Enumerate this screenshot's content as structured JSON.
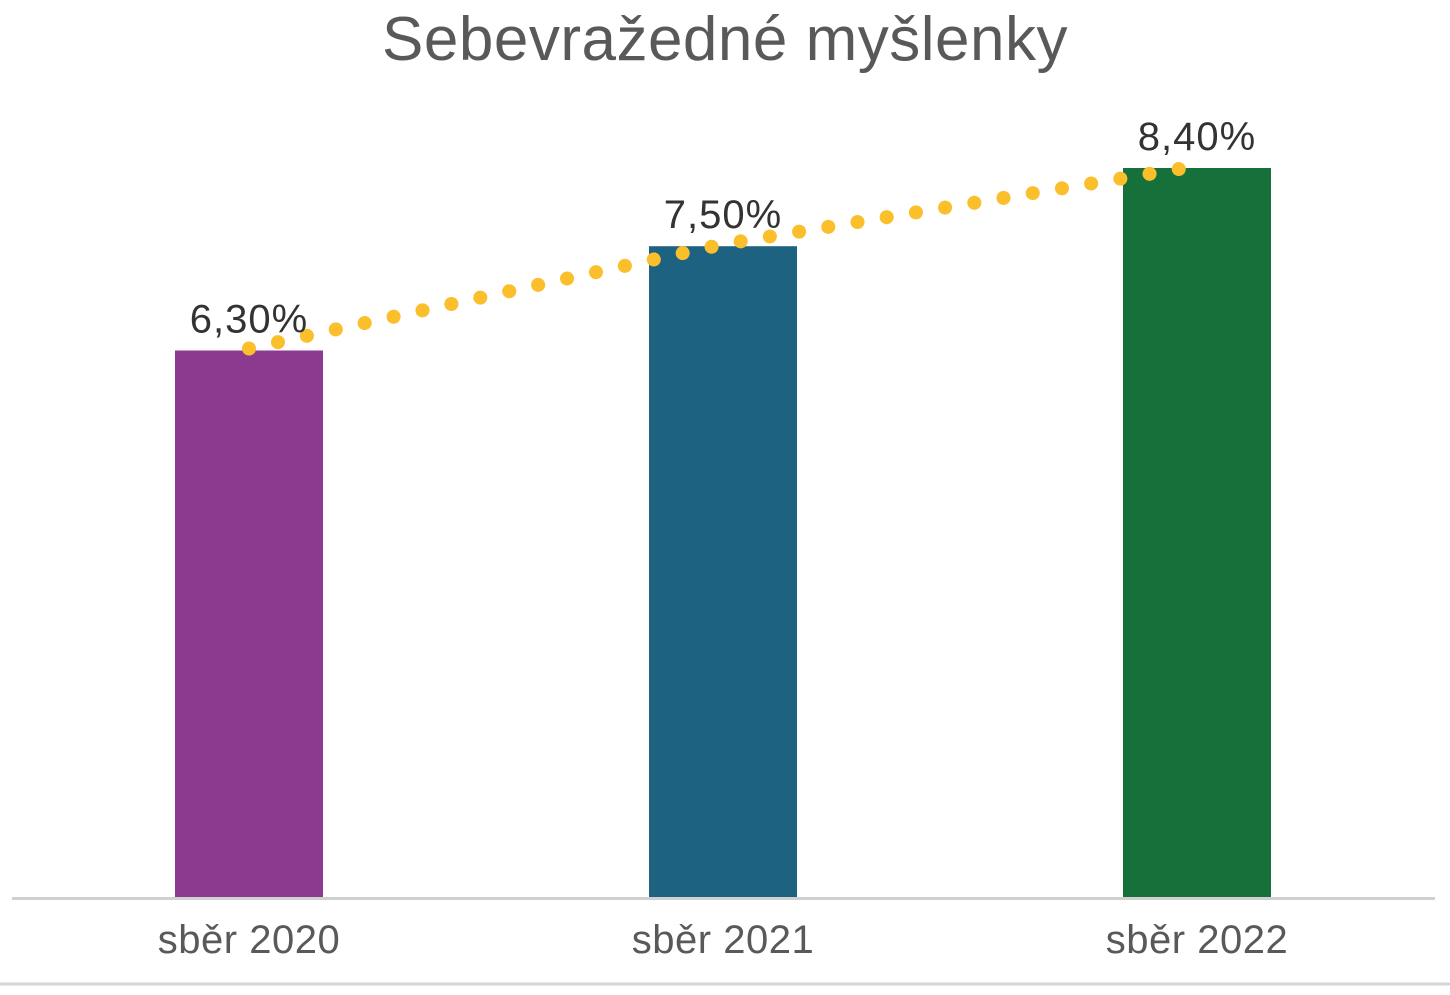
{
  "chart_data": {
    "type": "bar",
    "title": "Sebevražedné myšlenky",
    "categories": [
      "sběr 2020",
      "sběr 2021",
      "sběr 2022"
    ],
    "values": [
      6.3,
      7.5,
      8.4
    ],
    "data_labels": [
      "6,30%",
      "7,50%",
      "8,40%"
    ],
    "bar_colors": [
      "#8B3A8F",
      "#1D6280",
      "#157139"
    ],
    "trendline": {
      "style": "dotted",
      "color": "#FBBF2C"
    },
    "axis_color": "#D0D0D0",
    "ylim": [
      0,
      8.4
    ],
    "grid": false,
    "legend": "none"
  }
}
